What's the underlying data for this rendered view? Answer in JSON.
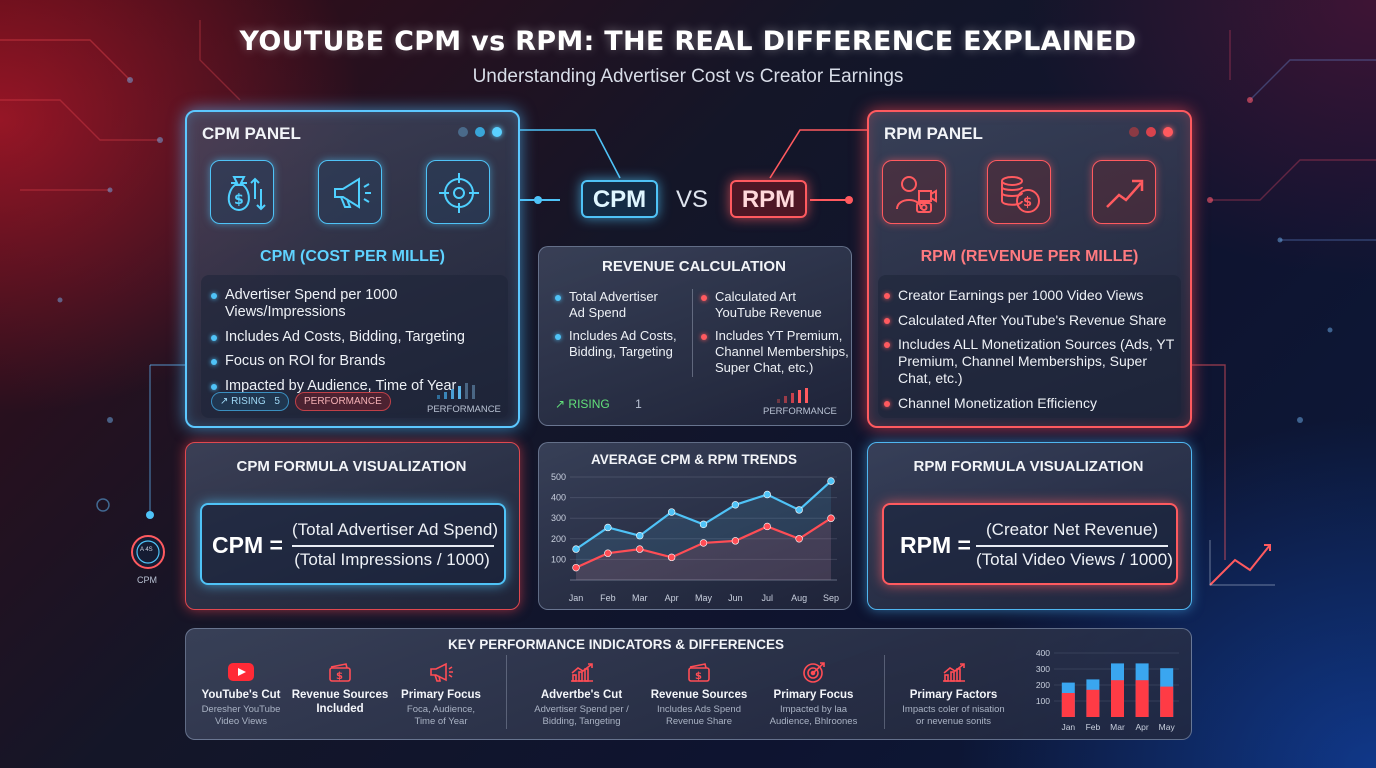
{
  "header": {
    "title": "YOUTUBE CPM vs RPM: THE REAL DIFFERENCE EXPLAINED",
    "subtitle": "Understanding Advertiser Cost vs Creator Earnings"
  },
  "cpm_panel": {
    "title": "CPM PANEL",
    "heading": "CPM (COST PER MILLE)",
    "icons": [
      "money-bag-icon",
      "megaphone-icon",
      "target-icon"
    ],
    "items": [
      "Advertiser Spend per 1000 Views/Impressions",
      "Includes Ad Costs, Bidding, Targeting",
      "Focus on ROI for Brands",
      "Impacted by Audience, Time of Year"
    ],
    "badge_rising": "RISING",
    "badge_rising_value": "5",
    "badge_performance": "PERFORMANCE",
    "footer_label": "PERFORMANCE",
    "accent": "#4fc3f7"
  },
  "rpm_panel": {
    "title": "RPM PANEL",
    "heading": "RPM (REVENUE PER MILLE)",
    "icons": [
      "creator-camera-icon",
      "coins-icon",
      "trend-up-icon"
    ],
    "items": [
      "Creator Earnings per 1000 Video Views",
      "Calculated After YouTube's Revenue Share",
      "Includes ALL Monetization Sources (Ads, YT",
      "Premium, Channel Memberships, Super Chat, etc.)",
      "Channel Monetization Efficiency"
    ],
    "accent": "#ff5a5f"
  },
  "versus": {
    "left": "CPM",
    "middle": "VS",
    "right": "RPM"
  },
  "revenue_calc": {
    "title": "REVENUE CALCULATION",
    "left_items": [
      [
        "Total Advertiser",
        "Ad Spend"
      ],
      [
        "Includes Ad Costs,",
        "Bidding, Targeting"
      ]
    ],
    "right_items": [
      [
        "Calculated Art",
        "YouTube Revenue"
      ],
      [
        "Includes YT Premium,",
        "Channel Memberships,",
        "Super Chat, etc.)"
      ]
    ],
    "rising_label": "RISING",
    "rising_value": "1",
    "footer_label": "PERFORMANCE"
  },
  "cpm_formula": {
    "title": "CPM FORMULA VISUALIZATION",
    "lhs": "CPM =",
    "numerator": "(Total Advertiser Ad Spend)",
    "denominator": "(Total Impressions / 1000)"
  },
  "rpm_formula": {
    "title": "RPM FORMULA VISUALIZATION",
    "lhs": "RPM =",
    "numerator": "(Creator Net Revenue)",
    "denominator": "(Total Video Views / 1000)"
  },
  "chart_data": [
    {
      "type": "line",
      "title": "AVERAGE CPM & RPM TRENDS",
      "categories": [
        "Jan",
        "Feb",
        "Mar",
        "Apr",
        "May",
        "Jun",
        "Jul",
        "Aug",
        "Sep"
      ],
      "yticks": [
        100,
        200,
        300,
        400,
        500
      ],
      "ylim": [
        0,
        500
      ],
      "series": [
        {
          "values": [
            150,
            255,
            215,
            330,
            270,
            365,
            415,
            340,
            480
          ],
          "color": "#4fc3f7"
        },
        {
          "values": [
            60,
            130,
            150,
            110,
            180,
            190,
            260,
            200,
            300
          ],
          "color": "#ff4d55"
        }
      ],
      "grid": true
    },
    {
      "type": "bar",
      "categories": [
        "Jan",
        "Feb",
        "Mar",
        "Apr",
        "May"
      ],
      "yticks": [
        100,
        200,
        300,
        400
      ],
      "ylim": [
        0,
        400
      ],
      "series": [
        {
          "values": [
            215,
            235,
            335,
            335,
            305
          ],
          "color": "#3aa6f0"
        },
        {
          "values": [
            150,
            170,
            230,
            230,
            190
          ],
          "color": "#ff3b45"
        }
      ]
    }
  ],
  "kpi": {
    "title": "KEY PERFORMANCE INDICATORS & DIFFERENCES",
    "items": [
      {
        "icon": "youtube-play-icon",
        "title": [
          "YouTube's Cut"
        ],
        "desc": [
          "Deresher YouTube",
          "Video Views"
        ]
      },
      {
        "icon": "money-stack-icon",
        "title": [
          "Revenue Sources",
          "Included"
        ],
        "desc": []
      },
      {
        "icon": "megaphone-icon",
        "title": [
          "Primary Focus"
        ],
        "desc": [
          "Foca, Audience,",
          "Time of Year"
        ]
      },
      {
        "icon": "chart-up-icon",
        "title": [
          "Advertbe's Cut"
        ],
        "desc": [
          "Advertiser Spend per /",
          "Bidding, Tangeting"
        ]
      },
      {
        "icon": "money-stack-icon",
        "title": [
          "Revenue Sources"
        ],
        "desc": [
          "Includes Ads Spend",
          "Revenue Share"
        ]
      },
      {
        "icon": "target-icon",
        "title": [
          "Primary Focus"
        ],
        "desc": [
          "Impacted by laa",
          "Audience, Bhlroones"
        ]
      },
      {
        "icon": "chart-up-icon",
        "title": [
          "Primary Factors"
        ],
        "desc": [
          "Impacts coler of nisation",
          "or nevenue sonits"
        ]
      }
    ]
  },
  "decor": {
    "gauge_label": "CPM",
    "gauge_inner": "A 4S"
  }
}
